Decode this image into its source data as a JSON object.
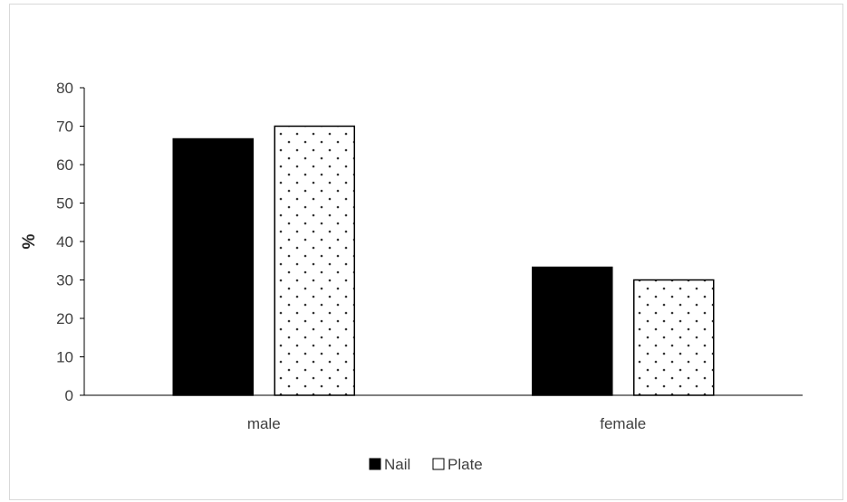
{
  "chart_data": {
    "type": "bar",
    "categories": [
      "male",
      "female"
    ],
    "series": [
      {
        "name": "Nail",
        "values": [
          66.7,
          33.3
        ],
        "fill": "#000000",
        "pattern": "solid"
      },
      {
        "name": "Plate",
        "values": [
          70,
          30
        ],
        "fill": "#ffffff",
        "pattern": "dotted"
      }
    ],
    "title": "",
    "xlabel": "",
    "ylabel": "%",
    "ylim": [
      0,
      80
    ],
    "yticks": [
      0,
      10,
      20,
      30,
      40,
      50,
      60,
      70,
      80
    ],
    "grid": false,
    "legend_position": "bottom"
  }
}
